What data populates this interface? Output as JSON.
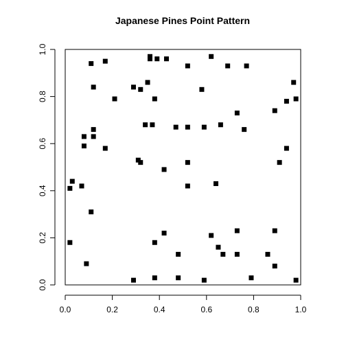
{
  "chart_data": {
    "type": "scatter",
    "title": "Japanese Pines Point Pattern",
    "xlabel": "",
    "ylabel": "",
    "xlim": [
      0,
      1
    ],
    "ylim": [
      0,
      1
    ],
    "x_ticks": [
      "0.0",
      "0.2",
      "0.4",
      "0.6",
      "0.8",
      "1.0"
    ],
    "y_ticks": [
      "0.0",
      "0.2",
      "0.4",
      "0.6",
      "0.8",
      "1.0"
    ],
    "grid": false,
    "marker": "square",
    "marker_color": "#000000",
    "points": [
      [
        0.11,
        0.94
      ],
      [
        0.17,
        0.95
      ],
      [
        0.36,
        0.97
      ],
      [
        0.36,
        0.96
      ],
      [
        0.39,
        0.96
      ],
      [
        0.43,
        0.96
      ],
      [
        0.52,
        0.93
      ],
      [
        0.62,
        0.97
      ],
      [
        0.69,
        0.93
      ],
      [
        0.77,
        0.93
      ],
      [
        0.12,
        0.84
      ],
      [
        0.29,
        0.84
      ],
      [
        0.32,
        0.83
      ],
      [
        0.35,
        0.86
      ],
      [
        0.21,
        0.79
      ],
      [
        0.38,
        0.79
      ],
      [
        0.58,
        0.83
      ],
      [
        0.97,
        0.86
      ],
      [
        0.98,
        0.79
      ],
      [
        0.73,
        0.73
      ],
      [
        0.89,
        0.74
      ],
      [
        0.94,
        0.78
      ],
      [
        0.12,
        0.66
      ],
      [
        0.08,
        0.63
      ],
      [
        0.12,
        0.63
      ],
      [
        0.08,
        0.59
      ],
      [
        0.17,
        0.58
      ],
      [
        0.34,
        0.68
      ],
      [
        0.37,
        0.68
      ],
      [
        0.47,
        0.67
      ],
      [
        0.52,
        0.67
      ],
      [
        0.59,
        0.67
      ],
      [
        0.66,
        0.68
      ],
      [
        0.76,
        0.66
      ],
      [
        0.31,
        0.53
      ],
      [
        0.32,
        0.52
      ],
      [
        0.42,
        0.49
      ],
      [
        0.52,
        0.52
      ],
      [
        0.94,
        0.58
      ],
      [
        0.91,
        0.52
      ],
      [
        0.03,
        0.44
      ],
      [
        0.02,
        0.41
      ],
      [
        0.07,
        0.42
      ],
      [
        0.52,
        0.42
      ],
      [
        0.64,
        0.43
      ],
      [
        0.11,
        0.31
      ],
      [
        0.02,
        0.18
      ],
      [
        0.09,
        0.09
      ],
      [
        0.38,
        0.18
      ],
      [
        0.42,
        0.22
      ],
      [
        0.48,
        0.13
      ],
      [
        0.62,
        0.21
      ],
      [
        0.65,
        0.16
      ],
      [
        0.67,
        0.13
      ],
      [
        0.73,
        0.23
      ],
      [
        0.73,
        0.13
      ],
      [
        0.86,
        0.13
      ],
      [
        0.89,
        0.23
      ],
      [
        0.89,
        0.08
      ],
      [
        0.29,
        0.02
      ],
      [
        0.38,
        0.03
      ],
      [
        0.48,
        0.03
      ],
      [
        0.59,
        0.02
      ],
      [
        0.79,
        0.03
      ],
      [
        0.98,
        0.02
      ]
    ]
  }
}
